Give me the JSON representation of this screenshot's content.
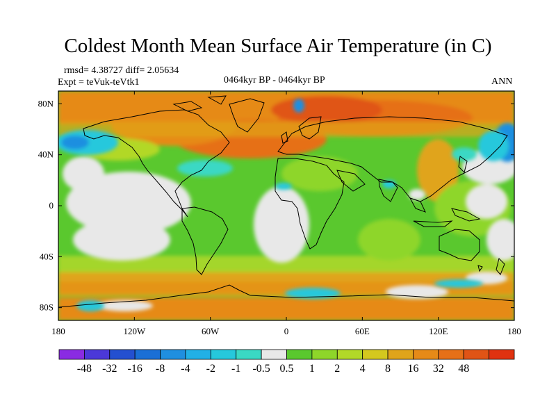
{
  "chart_data": {
    "type": "heatmap",
    "title": "Coldest Month Mean Surface Air Temperature (in C)",
    "stats_text": "rmsd= 4.38727 diff= 2.05634",
    "expt_text": "Expt = teVuk-teVtk1",
    "period_text": "0464kyr BP - 0464kyr BP",
    "season_text": "ANN",
    "x_range": [
      -180,
      180
    ],
    "y_range": [
      -90,
      90
    ],
    "x_ticks": [
      {
        "value": -180,
        "label": "180"
      },
      {
        "value": -120,
        "label": "120W"
      },
      {
        "value": -60,
        "label": "60W"
      },
      {
        "value": 0,
        "label": "0"
      },
      {
        "value": 60,
        "label": "60E"
      },
      {
        "value": 120,
        "label": "120E"
      },
      {
        "value": 180,
        "label": "180"
      }
    ],
    "y_ticks": [
      {
        "value": 80,
        "label": "80N"
      },
      {
        "value": 40,
        "label": "40N"
      },
      {
        "value": 0,
        "label": "0"
      },
      {
        "value": -40,
        "label": "40S"
      },
      {
        "value": -80,
        "label": "80S"
      }
    ],
    "colorbar": {
      "colors": [
        "#8a2be2",
        "#4b38d8",
        "#2450d0",
        "#1a6fd6",
        "#1f8fe0",
        "#22b0e6",
        "#26c8dc",
        "#3ad8c4",
        "#e8e8e8",
        "#5ac82e",
        "#8ed62a",
        "#b2d828",
        "#d4c81e",
        "#e0a41a",
        "#e68a18",
        "#e67018",
        "#e05416",
        "#e03210"
      ],
      "labels": [
        "-48",
        "-32",
        "-16",
        "-8",
        "-4",
        "-2",
        "-1",
        "-0.5",
        "0.5",
        "1",
        "2",
        "4",
        "8",
        "16",
        "32",
        "48"
      ]
    }
  }
}
